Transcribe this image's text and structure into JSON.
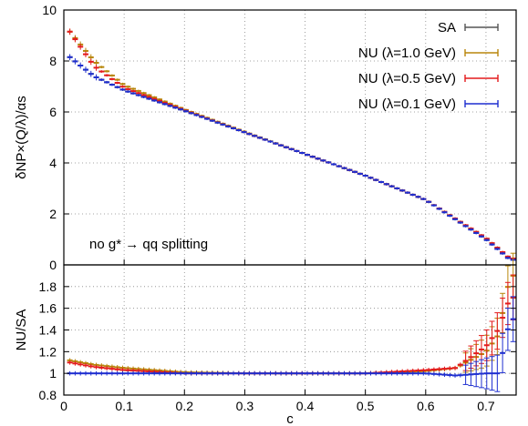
{
  "chart_data": [
    {
      "type": "line",
      "panel": "upper",
      "ylabel": "δNP×(Q/λ)/αs",
      "ylim": [
        0,
        10
      ],
      "yticks": [
        "0",
        "2",
        "4",
        "6",
        "8",
        "10"
      ],
      "xlim": [
        0,
        0.75
      ],
      "grid": true,
      "annotation": "no g* → qq splitting",
      "legend": {
        "placement": "top-right",
        "entries": [
          {
            "label": "SA",
            "color": "#555555"
          },
          {
            "label": "NU (λ=1.0 GeV)",
            "color": "#b8860b"
          },
          {
            "label": "NU (λ=0.5 GeV)",
            "color": "#e41a1c"
          },
          {
            "label": "NU (λ=0.1 GeV)",
            "color": "#1f2fd0"
          }
        ]
      },
      "x": [
        0.01,
        0.05,
        0.1,
        0.2,
        0.3,
        0.4,
        0.5,
        0.6,
        0.7,
        0.74
      ],
      "series": [
        {
          "name": "SA",
          "values": [
            8.15,
            7.4,
            6.85,
            6.05,
            5.2,
            4.35,
            3.5,
            2.55,
            1.0,
            0.2
          ]
        },
        {
          "name": "NU (λ=1.0 GeV)",
          "values": [
            9.15,
            8.0,
            7.05,
            6.1,
            5.22,
            4.35,
            3.5,
            2.55,
            1.05,
            0.25
          ]
        },
        {
          "name": "NU (λ=0.5 GeV)",
          "values": [
            9.15,
            7.8,
            6.95,
            6.07,
            5.2,
            4.35,
            3.5,
            2.55,
            1.05,
            0.25
          ]
        },
        {
          "name": "NU (λ=0.1 GeV)",
          "values": [
            8.15,
            7.4,
            6.85,
            6.05,
            5.2,
            4.35,
            3.5,
            2.55,
            1.0,
            0.2
          ]
        }
      ]
    },
    {
      "type": "line",
      "panel": "lower",
      "ylabel": "NU/SA",
      "xlabel": "c",
      "ylim": [
        0.8,
        2.0
      ],
      "yticks": [
        "0.8",
        "1",
        "1.2",
        "1.4",
        "1.6",
        "1.8"
      ],
      "xlim": [
        0,
        0.75
      ],
      "xticks": [
        "0",
        "0.1",
        "0.2",
        "0.3",
        "0.4",
        "0.5",
        "0.6",
        "0.7"
      ],
      "grid": true,
      "x": [
        0.01,
        0.05,
        0.1,
        0.2,
        0.3,
        0.4,
        0.5,
        0.6,
        0.65,
        0.7,
        0.72,
        0.74
      ],
      "series": [
        {
          "name": "NU (λ=1.0 GeV)",
          "values": [
            1.12,
            1.08,
            1.05,
            1.01,
            1.0,
            1.0,
            1.0,
            1.02,
            1.05,
            1.2,
            1.35,
            1.9
          ]
        },
        {
          "name": "NU (λ=0.5 GeV)",
          "values": [
            1.1,
            1.06,
            1.03,
            1.0,
            1.0,
            1.0,
            1.0,
            1.03,
            1.05,
            1.25,
            1.4,
            1.7
          ]
        },
        {
          "name": "NU (λ=0.1 GeV)",
          "values": [
            1.0,
            1.0,
            1.0,
            1.0,
            1.0,
            1.0,
            1.0,
            1.0,
            0.98,
            1.0,
            1.0,
            1.5
          ]
        }
      ]
    }
  ]
}
